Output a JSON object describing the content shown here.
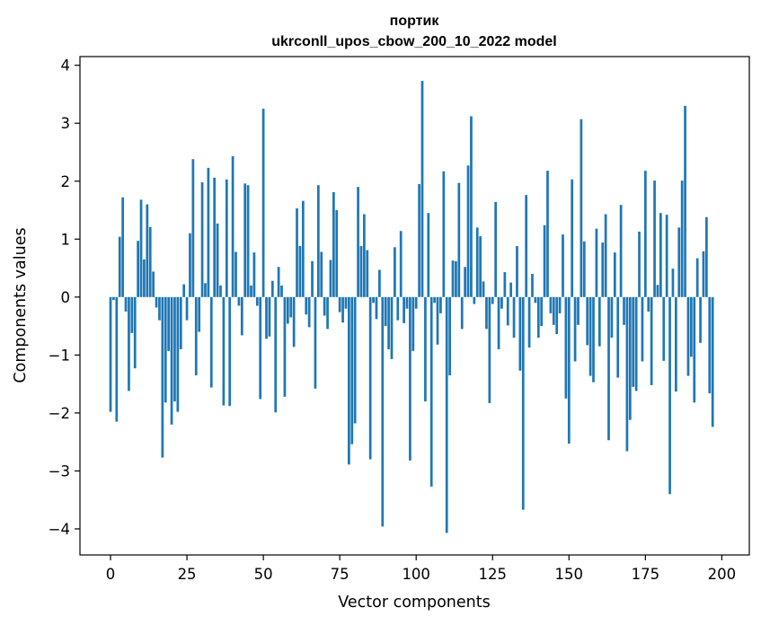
{
  "chart_data": {
    "type": "bar",
    "title_line1": "портик",
    "title_line2": "ukrconll_upos_cbow_200_10_2022 model",
    "xlabel": "Vector components",
    "ylabel": "Components values",
    "xlim": [
      -10,
      209
    ],
    "ylim": [
      -4.45,
      4.15
    ],
    "xticks": [
      0,
      25,
      50,
      75,
      100,
      125,
      150,
      175,
      200
    ],
    "xtick_labels": [
      "0",
      "25",
      "50",
      "75",
      "100",
      "125",
      "150",
      "175",
      "200"
    ],
    "yticks": [
      -4,
      -3,
      -2,
      -1,
      0,
      1,
      2,
      3,
      4
    ],
    "ytick_labels": [
      "−4",
      "−3",
      "−2",
      "−1",
      "0",
      "1",
      "2",
      "3",
      "4"
    ],
    "bar_color": "#1f77b4",
    "values": [
      -1.98,
      -0.05,
      -2.15,
      1.04,
      1.72,
      -0.25,
      -1.62,
      -0.62,
      -1.23,
      0.97,
      1.68,
      0.65,
      1.6,
      1.21,
      0.44,
      -0.18,
      -0.4,
      -2.77,
      -1.82,
      -0.93,
      -2.2,
      -1.8,
      -1.98,
      -0.9,
      0.22,
      -0.4,
      1.1,
      2.38,
      -1.35,
      -0.6,
      1.98,
      0.24,
      2.23,
      -1.56,
      2.06,
      1.27,
      0.2,
      -1.87,
      2.03,
      -1.88,
      2.43,
      0.78,
      -0.15,
      -0.66,
      1.96,
      1.93,
      0.2,
      0.77,
      -0.15,
      -1.76,
      3.25,
      -0.72,
      -0.68,
      0.28,
      -1.99,
      0.52,
      0.2,
      -1.72,
      -0.46,
      -0.35,
      -0.86,
      1.53,
      0.88,
      1.66,
      -0.3,
      -0.52,
      0.62,
      -1.58,
      1.93,
      0.78,
      -0.32,
      -0.55,
      0.64,
      1.81,
      1.5,
      -0.26,
      -0.44,
      -0.2,
      -2.89,
      -2.54,
      -2.18,
      1.9,
      0.88,
      1.43,
      0.81,
      -2.8,
      -0.1,
      -0.38,
      0.47,
      -3.96,
      -0.5,
      -0.9,
      -1.07,
      0.86,
      -0.4,
      1.14,
      -0.45,
      -0.2,
      -2.82,
      -0.93,
      -0.2,
      1.95,
      3.73,
      -1.8,
      1.45,
      -3.27,
      -0.1,
      -0.82,
      -0.28,
      2.17,
      -4.07,
      -1.35,
      0.63,
      0.62,
      1.97,
      -0.55,
      0.52,
      2.27,
      3.12,
      -0.12,
      1.2,
      1.05,
      0.27,
      -0.55,
      -1.83,
      -0.12,
      1.64,
      -0.9,
      -0.2,
      0.43,
      -0.49,
      0.25,
      -0.7,
      0.88,
      -1.27,
      -3.67,
      1.76,
      -0.87,
      0.4,
      -0.1,
      -0.7,
      -0.5,
      1.24,
      2.18,
      -0.28,
      -0.48,
      -0.64,
      -0.28,
      1.08,
      -1.75,
      -2.53,
      2.03,
      -1.11,
      -0.48,
      3.07,
      0.96,
      -0.83,
      -1.36,
      -1.47,
      1.18,
      -0.85,
      0.94,
      1.43,
      -2.47,
      -0.7,
      0.77,
      -1.39,
      1.59,
      -0.48,
      -2.66,
      -2.12,
      -1.55,
      -1.62,
      1.13,
      -1.11,
      2.18,
      -0.25,
      -1.52,
      2.01,
      0.21,
      1.45,
      -1.1,
      1.42,
      -3.4,
      0.49,
      -1.63,
      1.2,
      2.01,
      3.3,
      -1.36,
      -1.03,
      -1.82,
      0.67,
      -0.79,
      0.79,
      1.38,
      -1.66,
      -2.24
    ]
  }
}
